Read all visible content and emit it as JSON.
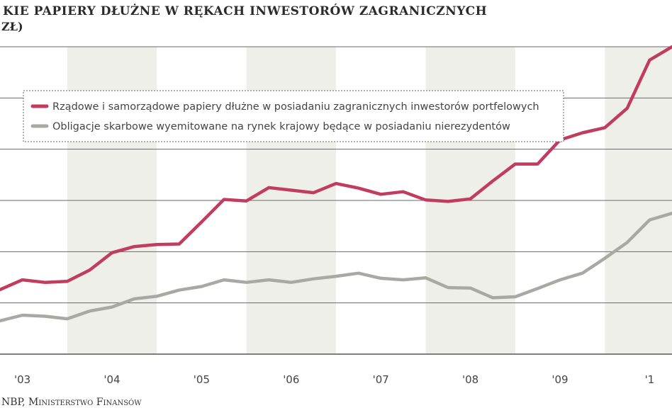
{
  "chart_data": {
    "type": "line",
    "title": "KIE PAPIERY DŁUŻNE W RĘKACH INWESTORÓW ZAGRANICZNYCH",
    "subtitle": "ZŁ)",
    "source": "NBP, Ministerstwo Finansów",
    "x_ticks": [
      "'03",
      "'04",
      "'05",
      "'06",
      "'07",
      "'08",
      "'09",
      "'1"
    ],
    "ylim": [
      0,
      6
    ],
    "grid": "horizontal",
    "legend_placement": "top-left",
    "x": [
      2002.75,
      2003.0,
      2003.25,
      2003.5,
      2003.75,
      2004.0,
      2004.25,
      2004.5,
      2004.75,
      2005.0,
      2005.25,
      2005.5,
      2005.75,
      2006.0,
      2006.25,
      2006.5,
      2006.75,
      2007.0,
      2007.25,
      2007.5,
      2007.75,
      2008.0,
      2008.25,
      2008.5,
      2008.75,
      2009.0,
      2009.25,
      2009.5,
      2009.75,
      2010.0,
      2010.25
    ],
    "series": [
      {
        "name": "Rządowe i samorządowe papiery dłużne w posiadaniu zagranicznych inwestorów portfelowych",
        "color": "#c13c5e",
        "values": [
          1.26,
          1.45,
          1.4,
          1.42,
          1.64,
          1.98,
          2.1,
          2.14,
          2.15,
          2.58,
          3.02,
          2.99,
          3.25,
          3.2,
          3.15,
          3.33,
          3.24,
          3.12,
          3.17,
          3.01,
          2.98,
          3.03,
          3.38,
          3.71,
          3.71,
          4.18,
          4.32,
          4.42,
          4.8,
          5.74,
          6.0
        ]
      },
      {
        "name": "Obligacje skarbowe wyemitowane na rynek krajowy będące w posiadaniu nierezydentów",
        "color": "#a9a9a3",
        "values": [
          0.65,
          0.76,
          0.74,
          0.69,
          0.84,
          0.92,
          1.08,
          1.13,
          1.25,
          1.32,
          1.45,
          1.4,
          1.45,
          1.4,
          1.47,
          1.52,
          1.58,
          1.48,
          1.45,
          1.49,
          1.3,
          1.29,
          1.1,
          1.12,
          1.28,
          1.45,
          1.58,
          1.87,
          2.18,
          2.62,
          2.75
        ]
      }
    ]
  }
}
